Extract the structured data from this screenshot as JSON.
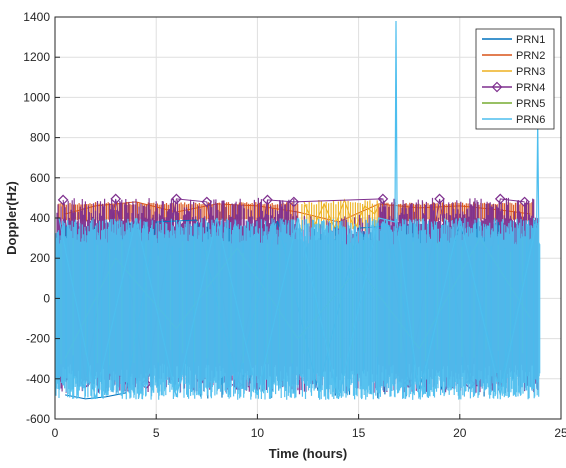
{
  "chart_data": {
    "type": "line",
    "title": "",
    "xlabel": "Time (hours)",
    "ylabel": "Doppler(Hz)",
    "xlim": [
      0,
      25
    ],
    "ylim": [
      -600,
      1400
    ],
    "xticks": [
      0,
      5,
      10,
      15,
      20,
      25
    ],
    "yticks": [
      -600,
      -400,
      -200,
      0,
      200,
      400,
      600,
      800,
      1000,
      1200,
      1400
    ],
    "grid": true,
    "legend_position": "top-right",
    "series": [
      {
        "name": "PRN1",
        "color": "#0072BD",
        "marker": "none",
        "x": [
          0.5,
          1.5,
          2.5,
          3.5,
          5.0,
          7.0,
          9.0,
          11.0,
          13.0,
          15.0,
          16.5,
          18.0,
          20.0,
          22.0,
          23.7
        ],
        "y": [
          -480,
          -500,
          -490,
          -470,
          380,
          390,
          -420,
          385,
          -460,
          350,
          360,
          -450,
          380,
          -430,
          380
        ]
      },
      {
        "name": "PRN2",
        "color": "#D95319",
        "marker": "none",
        "x": [
          0.5,
          2.0,
          4.0,
          6.0,
          8.0,
          10.0,
          12.0,
          14.0,
          16.0,
          18.0,
          20.0,
          22.0,
          23.5
        ],
        "y": [
          420,
          460,
          480,
          430,
          470,
          460,
          430,
          380,
          470,
          450,
          460,
          440,
          420
        ]
      },
      {
        "name": "PRN3",
        "color": "#EDB120",
        "marker": "none",
        "x": [
          12.3,
          12.8,
          13.3,
          13.8,
          14.3,
          14.8,
          15.3,
          15.8,
          16.0
        ],
        "y": [
          480,
          360,
          470,
          350,
          490,
          340,
          460,
          420,
          470
        ]
      },
      {
        "name": "PRN4",
        "color": "#7E2F8E",
        "marker": "diamond",
        "x": [
          0.4,
          1.5,
          3.0,
          4.5,
          6.0,
          7.5,
          9.0,
          10.5,
          11.8,
          16.2,
          17.5,
          19.0,
          20.5,
          22.0,
          23.2
        ],
        "y": [
          490,
          -420,
          495,
          -425,
          495,
          480,
          -430,
          490,
          480,
          495,
          -420,
          495,
          -425,
          495,
          480
        ]
      },
      {
        "name": "PRN5",
        "color": "#77AC30",
        "marker": "none",
        "x": [
          0.5,
          3.0,
          6.0,
          9.0,
          12.0,
          15.0,
          18.0,
          21.0,
          23.5
        ],
        "y": [
          -300,
          200,
          -150,
          250,
          -200,
          150,
          -250,
          300,
          -100
        ]
      },
      {
        "name": "PRN6",
        "color": "#4DBEEE",
        "marker": "none",
        "x": [
          0.2,
          2.0,
          4.0,
          6.0,
          8.0,
          10.0,
          12.0,
          14.0,
          16.0,
          16.8,
          16.85,
          16.9,
          18.0,
          20.0,
          22.0,
          23.8,
          23.85,
          23.9
        ],
        "y": [
          400,
          -500,
          400,
          -490,
          400,
          -480,
          400,
          -500,
          400,
          380,
          1380,
          380,
          -490,
          400,
          -480,
          380,
          880,
          380
        ]
      }
    ]
  }
}
